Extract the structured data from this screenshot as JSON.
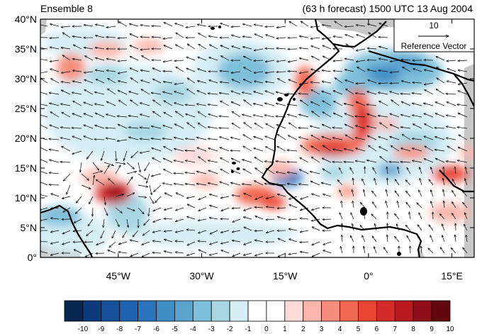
{
  "header": {
    "left_title": "Ensemble 8",
    "right_title": "(63 h forecast) 1500 UTC 13 Aug 2004"
  },
  "reference_vector": {
    "magnitude": "10",
    "label": "Reference Vector"
  },
  "axes": {
    "y_ticks": [
      {
        "value": 40,
        "label": "40°N"
      },
      {
        "value": 35,
        "label": "35°N"
      },
      {
        "value": 30,
        "label": "30°N"
      },
      {
        "value": 25,
        "label": "25°N"
      },
      {
        "value": 20,
        "label": "20°N"
      },
      {
        "value": 15,
        "label": "15°N"
      },
      {
        "value": 10,
        "label": "10°N"
      },
      {
        "value": 5,
        "label": "5°N"
      },
      {
        "value": 0,
        "label": "0°"
      }
    ],
    "x_ticks": [
      {
        "value": -45,
        "label": "45°W"
      },
      {
        "value": -30,
        "label": "30°W"
      },
      {
        "value": -15,
        "label": "15°W"
      },
      {
        "value": 0,
        "label": "0°"
      },
      {
        "value": 15,
        "label": "15°E"
      }
    ],
    "lon_range": [
      -59,
      19
    ],
    "lat_range": [
      0,
      40
    ]
  },
  "colorbar": {
    "labels": [
      "-10",
      "-9",
      "-8",
      "-7",
      "-6",
      "-5",
      "-4",
      "-3",
      "-2",
      "-1",
      "0",
      "1",
      "2",
      "3",
      "4",
      "5",
      "6",
      "7",
      "8",
      "9",
      "10"
    ],
    "colors": [
      "#08274f",
      "#0c3a7a",
      "#14519a",
      "#1d63ad",
      "#2a74bb",
      "#3f8fc6",
      "#5aa3cf",
      "#7ebfd9",
      "#a8d6e3",
      "#d6eef6",
      "#ffffff",
      "#ffffff",
      "#fddbd9",
      "#fbb7ad",
      "#f78e7d",
      "#f26850",
      "#e84535",
      "#d42a29",
      "#b8191f",
      "#8f0e17",
      "#640810"
    ]
  }
}
